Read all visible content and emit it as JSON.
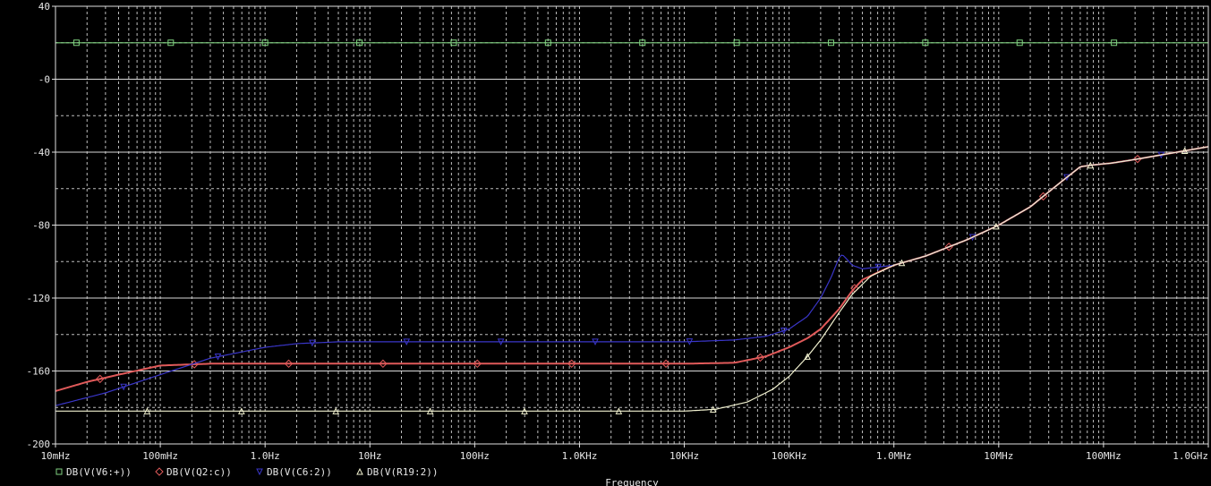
{
  "chart_data": {
    "type": "line",
    "xlabel": "Frequency",
    "x_scale": "log",
    "xlim_hz": [
      0.01,
      1000000000
    ],
    "ylim": [
      -200,
      40
    ],
    "grid": true,
    "x_ticks": [
      {
        "hz": 0.01,
        "label": "10mHz"
      },
      {
        "hz": 0.1,
        "label": "100mHz"
      },
      {
        "hz": 1,
        "label": "1.0Hz"
      },
      {
        "hz": 10,
        "label": "10Hz"
      },
      {
        "hz": 100,
        "label": "100Hz"
      },
      {
        "hz": 1000,
        "label": "1.0KHz"
      },
      {
        "hz": 10000,
        "label": "10KHz"
      },
      {
        "hz": 100000,
        "label": "100KHz"
      },
      {
        "hz": 1000000,
        "label": "1.0MHz"
      },
      {
        "hz": 10000000,
        "label": "10MHz"
      },
      {
        "hz": 100000000,
        "label": "100MHz"
      },
      {
        "hz": 1000000000,
        "label": "1.0GHz"
      }
    ],
    "y_ticks": [
      {
        "v": 40,
        "label": "40"
      },
      {
        "v": 0,
        "label": "-0"
      },
      {
        "v": -40,
        "label": "-40"
      },
      {
        "v": -80,
        "label": "-80"
      },
      {
        "v": -120,
        "label": "-120"
      },
      {
        "v": -160,
        "label": "-160"
      },
      {
        "v": -200,
        "label": "-200"
      }
    ],
    "series": [
      {
        "name": "DB(V(V6:+))",
        "color": "#7fd17f",
        "marker": "square",
        "points": [
          [
            0.01,
            20
          ],
          [
            1000000000,
            20
          ]
        ]
      },
      {
        "name": "DB(V(Q2:c))",
        "color": "#e05a5a",
        "marker": "diamond",
        "points": [
          [
            0.01,
            -171
          ],
          [
            0.02,
            -166
          ],
          [
            0.04,
            -162
          ],
          [
            0.1,
            -157
          ],
          [
            0.3,
            -156
          ],
          [
            1,
            -156
          ],
          [
            10,
            -156
          ],
          [
            100,
            -156
          ],
          [
            1000,
            -156
          ],
          [
            10000,
            -156
          ],
          [
            30000,
            -155.5
          ],
          [
            60000,
            -152
          ],
          [
            100000,
            -147
          ],
          [
            150000,
            -142
          ],
          [
            200000,
            -137
          ],
          [
            300000,
            -126
          ],
          [
            400000,
            -116
          ],
          [
            500000,
            -110
          ],
          [
            700000,
            -106
          ],
          [
            1000000,
            -102
          ],
          [
            2000000,
            -97
          ],
          [
            3000000,
            -93
          ],
          [
            5000000,
            -88
          ],
          [
            10000000,
            -80
          ],
          [
            20000000,
            -70
          ],
          [
            40000000,
            -56
          ],
          [
            60000000,
            -48
          ],
          [
            80000000,
            -47
          ],
          [
            120000000,
            -46
          ],
          [
            200000000,
            -44
          ],
          [
            400000000,
            -41
          ],
          [
            1000000000,
            -37
          ]
        ]
      },
      {
        "name": "DB(V(C6:2))",
        "color": "#3a36c8",
        "marker": "triangle-down",
        "points": [
          [
            0.01,
            -179
          ],
          [
            0.03,
            -172
          ],
          [
            0.1,
            -162
          ],
          [
            0.3,
            -153
          ],
          [
            1,
            -147
          ],
          [
            2,
            -145
          ],
          [
            5,
            -144
          ],
          [
            10,
            -144
          ],
          [
            100,
            -144
          ],
          [
            1000,
            -144
          ],
          [
            10000,
            -144
          ],
          [
            30000,
            -143
          ],
          [
            60000,
            -141
          ],
          [
            100000,
            -137
          ],
          [
            150000,
            -130
          ],
          [
            200000,
            -120
          ],
          [
            250000,
            -109
          ],
          [
            300000,
            -98
          ],
          [
            320000,
            -96
          ],
          [
            360000,
            -99
          ],
          [
            400000,
            -102
          ],
          [
            500000,
            -104
          ],
          [
            700000,
            -103
          ],
          [
            1000000,
            -102
          ],
          [
            2000000,
            -97
          ],
          [
            3000000,
            -93
          ],
          [
            5000000,
            -88
          ],
          [
            10000000,
            -80
          ],
          [
            20000000,
            -70
          ],
          [
            40000000,
            -56
          ],
          [
            60000000,
            -48
          ],
          [
            80000000,
            -47
          ],
          [
            120000000,
            -46
          ],
          [
            200000000,
            -44
          ],
          [
            400000000,
            -41
          ],
          [
            1000000000,
            -37
          ]
        ]
      },
      {
        "name": "DB(V(R19:2))",
        "color": "#f2f2d0",
        "marker": "triangle-up",
        "points": [
          [
            0.01,
            -182
          ],
          [
            1,
            -182
          ],
          [
            100,
            -182
          ],
          [
            1000,
            -182
          ],
          [
            10000,
            -182
          ],
          [
            20000,
            -181
          ],
          [
            40000,
            -177
          ],
          [
            70000,
            -170
          ],
          [
            100000,
            -163
          ],
          [
            150000,
            -152
          ],
          [
            200000,
            -143
          ],
          [
            300000,
            -128
          ],
          [
            400000,
            -118
          ],
          [
            600000,
            -108
          ],
          [
            1000000,
            -102
          ],
          [
            2000000,
            -97
          ],
          [
            3000000,
            -93
          ],
          [
            5000000,
            -88
          ],
          [
            10000000,
            -80
          ],
          [
            20000000,
            -70
          ],
          [
            40000000,
            -56
          ],
          [
            60000000,
            -48
          ],
          [
            80000000,
            -47
          ],
          [
            120000000,
            -46
          ],
          [
            200000000,
            -44
          ],
          [
            400000000,
            -41
          ],
          [
            1000000000,
            -37
          ]
        ]
      }
    ]
  }
}
